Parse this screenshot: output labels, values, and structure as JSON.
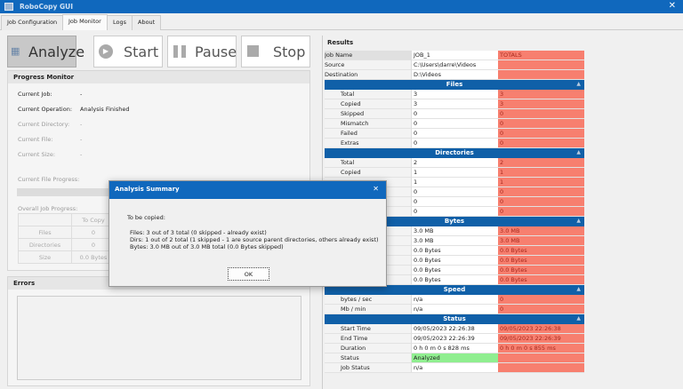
{
  "window": {
    "title": "RoboCopy GUI"
  },
  "tabs": [
    "Job Configuration",
    "Job Monitor",
    "Logs",
    "About"
  ],
  "active_tab": "Job Monitor",
  "toolbar": {
    "analyze": "Analyze",
    "start": "Start",
    "pause": "Pause",
    "stop": "Stop"
  },
  "progress": {
    "title": "Progress Monitor",
    "rows": [
      {
        "label": "Current Job:",
        "value": "-"
      },
      {
        "label": "Current Operation:",
        "value": "Analysis Finished"
      },
      {
        "label": "Current Directory:",
        "value": "-"
      },
      {
        "label": "Current File:",
        "value": "-"
      },
      {
        "label": "Current Size:",
        "value": "-"
      }
    ],
    "file_progress_label": "Current File Progress:",
    "overall_label": "Overall Job Progress:",
    "table": {
      "header": "To Copy",
      "rows": [
        {
          "label": "Files",
          "value": "0"
        },
        {
          "label": "Directories",
          "value": "0"
        },
        {
          "label": "Size",
          "value": "0.0 Bytes"
        }
      ]
    }
  },
  "errors": {
    "title": "Errors"
  },
  "results": {
    "title": "Results",
    "top": [
      [
        "Job Name",
        "JOB_1",
        "TOTALS"
      ],
      [
        "Source",
        "C:\\Users\\darre\\Videos",
        ""
      ],
      [
        "Destination",
        "D:\\Videos",
        ""
      ]
    ],
    "sections": [
      {
        "title": "Files",
        "rows": [
          [
            "Total",
            "3",
            "3"
          ],
          [
            "Copied",
            "3",
            "3"
          ],
          [
            "Skipped",
            "0",
            "0"
          ],
          [
            "Mismatch",
            "0",
            "0"
          ],
          [
            "Failed",
            "0",
            "0"
          ],
          [
            "Extras",
            "0",
            "0"
          ]
        ]
      },
      {
        "title": "Directories",
        "rows": [
          [
            "Total",
            "2",
            "2"
          ],
          [
            "Copied",
            "1",
            "1"
          ],
          [
            "",
            "1",
            "1"
          ],
          [
            "",
            "0",
            "0"
          ],
          [
            "",
            "0",
            "0"
          ],
          [
            "",
            "0",
            "0"
          ]
        ]
      },
      {
        "title": "Bytes",
        "rows": [
          [
            "",
            "3.0 MB",
            "3.0 MB"
          ],
          [
            "",
            "3.0 MB",
            "3.0 MB"
          ],
          [
            "",
            "0.0 Bytes",
            "0.0 Bytes"
          ],
          [
            "",
            "0.0 Bytes",
            "0.0 Bytes"
          ],
          [
            "",
            "0.0 Bytes",
            "0.0 Bytes"
          ],
          [
            "",
            "0.0 Bytes",
            "0.0 Bytes"
          ]
        ]
      },
      {
        "title": "Speed",
        "rows": [
          [
            "bytes / sec",
            "n/a",
            "0"
          ],
          [
            "Mb / min",
            "n/a",
            "0"
          ]
        ]
      },
      {
        "title": "Status",
        "rows": [
          [
            "Start Time",
            "09/05/2023 22:26:38",
            "09/05/2023 22:26:38"
          ],
          [
            "End Time",
            "09/05/2023 22:26:39",
            "09/05/2023 22:26:39"
          ],
          [
            "Duration",
            "0 h 0 m 0 s 828 ms",
            "0 h 0 m 0 s 855 ms"
          ],
          [
            "Status",
            "Analyzed",
            ""
          ],
          [
            "Job Status",
            "n/a",
            ""
          ]
        ]
      }
    ]
  },
  "dialog": {
    "title": "Analysis Summary",
    "heading": "To be copied:",
    "lines": [
      "Files: 3 out of 3 total (0 skipped - already exist)",
      "Dirs: 1 out of 2 total (1 skipped - 1 are source parent directories, others already exist)",
      "Bytes: 3.0 MB out of 3.0 MB total (0.0 Bytes skipped)"
    ],
    "ok": "OK"
  },
  "colors": {
    "accent": "#1068bd",
    "section": "#1060a8",
    "totals": "#f77f6f",
    "analyzed": "#90ee90"
  }
}
